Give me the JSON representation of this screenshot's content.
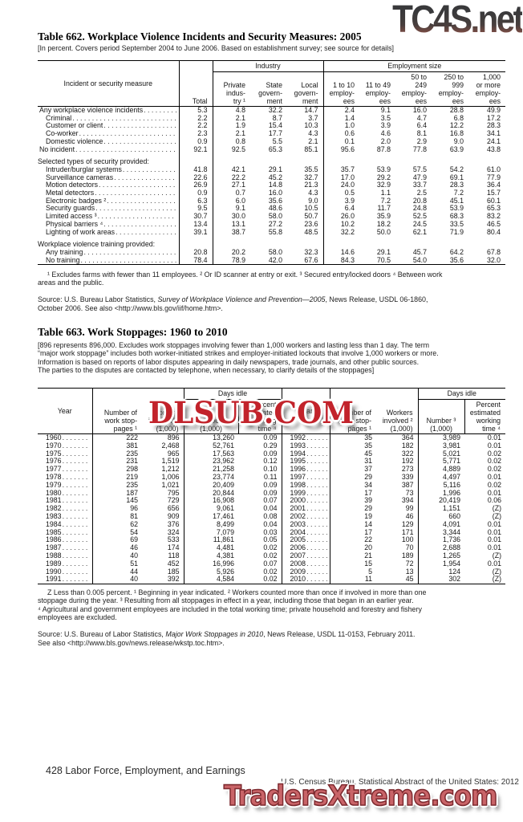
{
  "watermarks": {
    "top": "TC4S.net",
    "middle": "DLSUB.COM",
    "bottom": "TradersXtreme.com",
    "top_color_dark": "#2d2d2f",
    "top_color_red": "#a85f50",
    "middle_color": "#c2232b",
    "bottom_color": "#c96468"
  },
  "table662": {
    "title": "Table 662. Workplace Violence Incidents and Security Measures: 2005",
    "note": "[In percent. Covers period September 2004 to June 2006. Based on establishment survey; see source for details]",
    "stub_header": "Incident or security measure",
    "total_header": "Total",
    "industry_label": "Industry",
    "employment_label": "Employment size",
    "columns": [
      "Private\nindus-\ntry ¹",
      "State\ngovern-\nment",
      "Local\ngovern-\nment",
      "1 to 10\nemploy-\nees",
      "11 to 49\nemploy-\nees",
      "50 to\n249\nemploy-\nees",
      "250 to\n999\nemploy-\nees",
      "1,000\nor more\nemploy-\nees"
    ],
    "rows": [
      {
        "label": "Any workplace violence incidents",
        "indent": 0,
        "values": [
          "5.3",
          "4.8",
          "32.2",
          "14.7",
          "2.4",
          "9.1",
          "16.0",
          "28.8",
          "49.9"
        ]
      },
      {
        "label": "Criminal",
        "indent": 1,
        "values": [
          "2.2",
          "2.1",
          "8.7",
          "3.7",
          "1.4",
          "3.5",
          "4.7",
          "6.8",
          "17.2"
        ]
      },
      {
        "label": "Customer or client",
        "indent": 1,
        "values": [
          "2.2",
          "1.9",
          "15.4",
          "10.3",
          "1.0",
          "3.9",
          "6.4",
          "12.2",
          "28.3"
        ]
      },
      {
        "label": "Co-worker",
        "indent": 1,
        "values": [
          "2.3",
          "2.1",
          "17.7",
          "4.3",
          "0.6",
          "4.6",
          "8.1",
          "16.8",
          "34.1"
        ]
      },
      {
        "label": "Domestic violence",
        "indent": 1,
        "values": [
          "0.9",
          "0.8",
          "5.5",
          "2.1",
          "0.1",
          "2.0",
          "2.9",
          "9.0",
          "24.1"
        ]
      },
      {
        "label": "No incident",
        "indent": 0,
        "values": [
          "92.1",
          "92.5",
          "65.3",
          "85.1",
          "95.6",
          "87.8",
          "77.8",
          "63.9",
          "43.8"
        ]
      },
      {
        "label": "Selected types of security provided:",
        "section": true
      },
      {
        "label": "Intruder/burglar systems",
        "indent": 1,
        "values": [
          "41.8",
          "42.1",
          "29.1",
          "35.5",
          "35.7",
          "53.9",
          "57.5",
          "54.2",
          "61.0"
        ]
      },
      {
        "label": "Surveillance cameras",
        "indent": 1,
        "values": [
          "22.6",
          "22.2",
          "45.2",
          "32.7",
          "17.0",
          "29.2",
          "47.9",
          "69.1",
          "77.9"
        ]
      },
      {
        "label": "Motion detectors",
        "indent": 1,
        "values": [
          "26.9",
          "27.1",
          "14.8",
          "21.3",
          "24.0",
          "32.9",
          "33.7",
          "28.3",
          "36.4"
        ]
      },
      {
        "label": "Metal detectors",
        "indent": 1,
        "values": [
          "0.9",
          "0.7",
          "16.0",
          "4.3",
          "0.5",
          "1.1",
          "2.5",
          "7.2",
          "15.7"
        ]
      },
      {
        "label": "Electronic badges ²",
        "indent": 1,
        "values": [
          "6.3",
          "6.0",
          "35.6",
          "9.0",
          "3.9",
          "7.2",
          "20.8",
          "45.1",
          "60.1"
        ]
      },
      {
        "label": "Security guards",
        "indent": 1,
        "values": [
          "9.5",
          "9.1",
          "48.6",
          "10.5",
          "6.4",
          "11.7",
          "24.8",
          "53.9",
          "65.3"
        ]
      },
      {
        "label": "Limited access ³",
        "indent": 1,
        "values": [
          "30.7",
          "30.0",
          "58.0",
          "50.7",
          "26.0",
          "35.9",
          "52.5",
          "68.3",
          "83.2"
        ]
      },
      {
        "label": "Physical barriers ⁴",
        "indent": 1,
        "values": [
          "13.4",
          "13.1",
          "27.2",
          "23.6",
          "10.2",
          "18.2",
          "24.5",
          "33.5",
          "46.5"
        ]
      },
      {
        "label": "Lighting of work areas",
        "indent": 1,
        "values": [
          "39.1",
          "38.7",
          "55.8",
          "48.5",
          "32.2",
          "50.0",
          "62.1",
          "71.9",
          "80.4"
        ]
      },
      {
        "label": "Workplace violence training provided:",
        "section": true
      },
      {
        "label": "Any training",
        "indent": 1,
        "values": [
          "20.8",
          "20.2",
          "58.0",
          "32.3",
          "14.6",
          "29.1",
          "45.7",
          "64.2",
          "67.8"
        ]
      },
      {
        "label": "No training",
        "indent": 1,
        "values": [
          "78.4",
          "78.9",
          "42.0",
          "67.6",
          "84.3",
          "70.5",
          "54.0",
          "35.6",
          "32.0"
        ]
      }
    ],
    "footnotes": "¹ Excludes farms with fewer than 11 employees. ² Or ID scanner at entry or exit. ³ Secured entry/locked doors ⁴ Between work\nareas and the public.",
    "source_prefix": "Source: U.S. Bureau Labor Statistics, ",
    "source_italic": "Survey of Workplace Violence and Prevention—2005",
    "source_suffix": ", News Release, USDL 06-1860,\nOctober 2006. See also <http://www.bls.gov/iif/home.htm>."
  },
  "table663": {
    "title": "Table 663. Work Stoppages: 1960 to 2010",
    "note": "[896 represents 896,000. Excludes work stoppages involving fewer than 1,000 workers and lasting less than 1 day. The term\n“major work stoppage” includes both worker-initiated strikes  and employer-initiated lockouts that involve 1,000 workers or more.\nInformation is based on reports of labor disputes appearing in daily newspapers, trade journals, and other public sources.\nThe parties to the disputes are contacted by telephone, when necessary, to clarify details of the stoppages]",
    "columns": {
      "year": "Year",
      "stoppages": "Number of\nwork stop-\npages ¹",
      "workers": "Workers\ninvolved ²\n(1,000)",
      "days_idle": "Days idle",
      "number": "Number ³\n(1,000)",
      "percent": "Percent\nestimated\nworking\ntime ⁴"
    },
    "rows": [
      [
        "1960",
        "222",
        "896",
        "13,260",
        "0.09",
        "1992",
        "35",
        "364",
        "3,989",
        "0.01"
      ],
      [
        "1970",
        "381",
        "2,468",
        "52,761",
        "0.29",
        "1993",
        "35",
        "182",
        "3,981",
        "0.01"
      ],
      [
        "1975",
        "235",
        "965",
        "17,563",
        "0.09",
        "1994",
        "45",
        "322",
        "5,021",
        "0.02"
      ],
      [
        "1976",
        "231",
        "1,519",
        "23,962",
        "0.12",
        "1995",
        "31",
        "192",
        "5,771",
        "0.02"
      ],
      [
        "1977",
        "298",
        "1,212",
        "21,258",
        "0.10",
        "1996",
        "37",
        "273",
        "4,889",
        "0.02"
      ],
      [
        "1978",
        "219",
        "1,006",
        "23,774",
        "0.11",
        "1997",
        "29",
        "339",
        "4,497",
        "0.01"
      ],
      [
        "1979",
        "235",
        "1,021",
        "20,409",
        "0.09",
        "1998",
        "34",
        "387",
        "5,116",
        "0.02"
      ],
      [
        "1980",
        "187",
        "795",
        "20,844",
        "0.09",
        "1999",
        "17",
        "73",
        "1,996",
        "0.01"
      ],
      [
        "1981",
        "145",
        "729",
        "16,908",
        "0.07",
        "2000",
        "39",
        "394",
        "20,419",
        "0.06"
      ],
      [
        "1982",
        "96",
        "656",
        "9,061",
        "0.04",
        "2001",
        "29",
        "99",
        "1,151",
        "(Z)"
      ],
      [
        "1983",
        "81",
        "909",
        "17,461",
        "0.08",
        "2002",
        "19",
        "46",
        "660",
        "(Z)"
      ],
      [
        "1984",
        "62",
        "376",
        "8,499",
        "0.04",
        "2003",
        "14",
        "129",
        "4,091",
        "0.01"
      ],
      [
        "1985",
        "54",
        "324",
        "7,079",
        "0.03",
        "2004",
        "17",
        "171",
        "3,344",
        "0.01"
      ],
      [
        "1986",
        "69",
        "533",
        "11,861",
        "0.05",
        "2005",
        "22",
        "100",
        "1,736",
        "0.01"
      ],
      [
        "1987",
        "46",
        "174",
        "4,481",
        "0.02",
        "2006",
        "20",
        "70",
        "2,688",
        "0.01"
      ],
      [
        "1988",
        "40",
        "118",
        "4,381",
        "0.02",
        "2007",
        "21",
        "189",
        "1,265",
        "(Z)"
      ],
      [
        "1989",
        "51",
        "452",
        "16,996",
        "0.07",
        "2008",
        "15",
        "72",
        "1,954",
        "0.01"
      ],
      [
        "1990",
        "44",
        "185",
        "5,926",
        "0.02",
        "2009",
        "5",
        "13",
        "124",
        "(Z)"
      ],
      [
        "1991",
        "40",
        "392",
        "4,584",
        "0.02",
        "2010",
        "11",
        "45",
        "302",
        "(Z)"
      ]
    ],
    "footnotes_a": "Z Less than 0.005 percent. ¹ Beginning in year indicated. ² Workers counted more than once if involved in more than one\nstoppage during the year. ³ Resulting from all stoppages in effect in a year, including those that began in an earlier year.",
    "footnotes_b": "⁴ Agricultural and government employees are included in the total working time; private household and forestry and fishery\nemployees are excluded.",
    "source_prefix": "Source: U.S. Bureau of Labor Statistics, ",
    "source_italic": "Major Work Stoppages in 2010",
    "source_suffix": ", News Release, USDL 11-0153, February 2011.\nSee also <http://www.bls.gov/news.release/wkstp.toc.htm>."
  },
  "footer": {
    "page_line": "428  Labor Force, Employment, and Earnings",
    "source_line": "U.S. Census Bureau, Statistical Abstract of the United States: 2012"
  }
}
